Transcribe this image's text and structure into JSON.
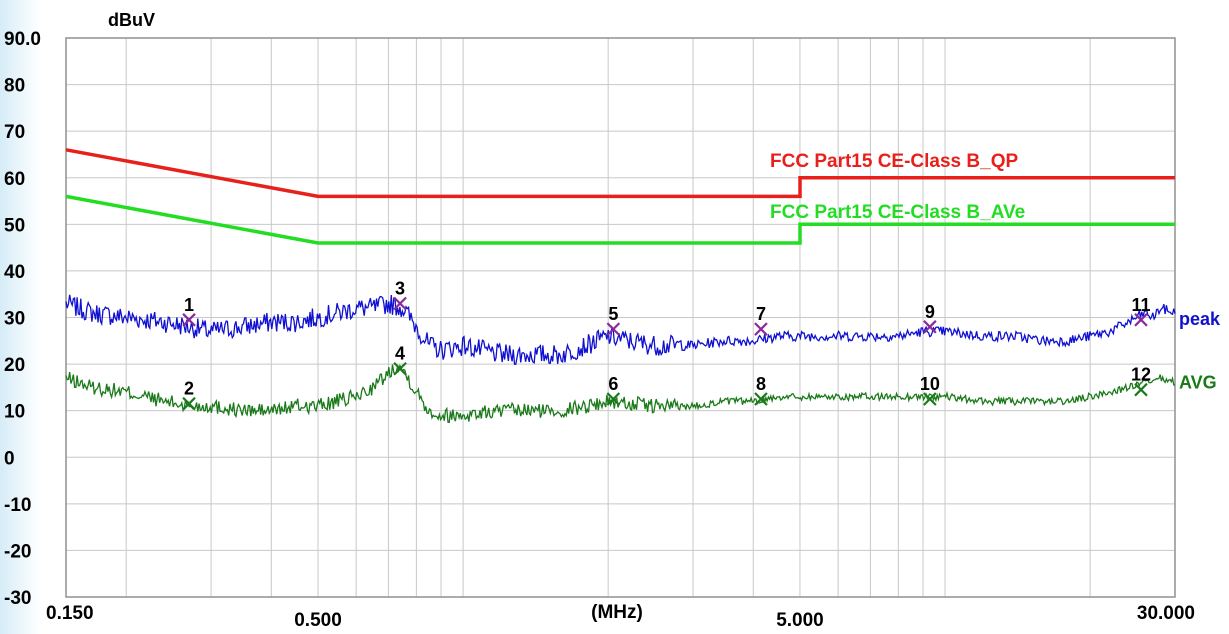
{
  "chart_data": {
    "type": "line",
    "title": "",
    "ylabel": "dBuV",
    "xlabel": "(MHz)",
    "x_scale": "log",
    "xlim": [
      0.15,
      30
    ],
    "ylim": [
      -30,
      90
    ],
    "grid": true,
    "background": "#ffffff",
    "y_ticks": [
      "90.0",
      "80",
      "70",
      "60",
      "50",
      "40",
      "30",
      "20",
      "10",
      "0",
      "-10",
      "-20",
      "-30"
    ],
    "y_tick_values": [
      90,
      80,
      70,
      60,
      50,
      40,
      30,
      20,
      10,
      0,
      -10,
      -20,
      -30
    ],
    "x_ticks": [
      "0.150",
      "0.500",
      "5.000",
      "30.000"
    ],
    "x_tick_values": [
      0.15,
      0.5,
      5,
      30
    ],
    "limits": [
      {
        "name": "FCC Part15 CE-Class B_QP",
        "color": "#e8201c",
        "points": [
          [
            0.15,
            66
          ],
          [
            0.5,
            56
          ],
          [
            5,
            56
          ],
          [
            5,
            60
          ],
          [
            30,
            60
          ]
        ]
      },
      {
        "name": "FCC Part15 CE-Class B_AVe",
        "color": "#22dd22",
        "points": [
          [
            0.15,
            56
          ],
          [
            0.5,
            46
          ],
          [
            5,
            46
          ],
          [
            5,
            50
          ],
          [
            30,
            50
          ]
        ]
      }
    ],
    "series": [
      {
        "name": "peak",
        "color": "#1010d0",
        "x": [
          0.15,
          0.17,
          0.2,
          0.24,
          0.27,
          0.3,
          0.35,
          0.4,
          0.45,
          0.5,
          0.55,
          0.6,
          0.65,
          0.7,
          0.75,
          0.8,
          0.85,
          0.9,
          1.0,
          1.2,
          1.4,
          1.6,
          1.8,
          2.0,
          2.2,
          2.5,
          3.0,
          3.5,
          4.0,
          4.5,
          5.0,
          6.0,
          7.0,
          8.0,
          9.0,
          10.0,
          12.0,
          14.0,
          16.0,
          18.0,
          20.0,
          22.0,
          24.0,
          26.0,
          27.0,
          28.0,
          30.0
        ],
        "values": [
          33,
          31,
          30,
          29,
          28,
          27,
          28,
          29,
          29,
          30,
          31,
          32,
          32,
          33,
          32,
          28,
          24,
          23,
          24,
          22,
          22,
          22,
          24,
          26,
          25,
          24,
          24,
          25,
          25,
          26,
          26,
          26,
          26,
          26,
          27,
          27,
          26,
          26,
          25,
          25,
          26,
          27,
          29,
          31,
          30,
          32,
          31
        ]
      },
      {
        "name": "AVG",
        "color": "#1a7a1a",
        "x": [
          0.15,
          0.17,
          0.2,
          0.24,
          0.27,
          0.3,
          0.35,
          0.4,
          0.45,
          0.5,
          0.55,
          0.6,
          0.65,
          0.7,
          0.73,
          0.76,
          0.8,
          0.85,
          0.9,
          1.0,
          1.2,
          1.4,
          1.6,
          1.8,
          2.0,
          2.5,
          3.0,
          3.5,
          4.0,
          4.5,
          5.0,
          6.0,
          7.0,
          8.0,
          9.0,
          10.0,
          12.0,
          14.0,
          16.0,
          18.0,
          20.0,
          22.0,
          24.0,
          26.0,
          27.0,
          28.0,
          30.0
        ],
        "values": [
          17,
          15,
          14,
          12,
          11,
          11,
          10,
          10,
          11,
          11,
          12,
          13,
          15,
          18,
          20,
          18,
          14,
          10,
          9,
          9,
          10,
          10,
          10,
          11,
          12,
          11,
          11,
          12,
          12,
          13,
          13,
          13,
          13,
          13,
          13,
          13,
          12,
          12,
          12,
          12,
          13,
          14,
          15,
          16,
          16,
          17,
          16
        ]
      }
    ],
    "markers": [
      {
        "label": "1",
        "x": 0.27,
        "y": 29.5,
        "series": "peak"
      },
      {
        "label": "2",
        "x": 0.27,
        "y": 11.5,
        "series": "AVG"
      },
      {
        "label": "3",
        "x": 0.74,
        "y": 33,
        "series": "peak"
      },
      {
        "label": "4",
        "x": 0.74,
        "y": 19,
        "series": "AVG"
      },
      {
        "label": "5",
        "x": 2.05,
        "y": 27.5,
        "series": "peak"
      },
      {
        "label": "6",
        "x": 2.05,
        "y": 12.5,
        "series": "AVG"
      },
      {
        "label": "7",
        "x": 4.15,
        "y": 27.5,
        "series": "peak"
      },
      {
        "label": "8",
        "x": 4.15,
        "y": 12.5,
        "series": "AVG"
      },
      {
        "label": "9",
        "x": 9.3,
        "y": 28,
        "series": "peak"
      },
      {
        "label": "10",
        "x": 9.3,
        "y": 12.5,
        "series": "AVG"
      },
      {
        "label": "11",
        "x": 25.5,
        "y": 29.5,
        "series": "peak"
      },
      {
        "label": "12",
        "x": 25.5,
        "y": 14.5,
        "series": "AVG"
      }
    ],
    "marker_color_peak": "#8a2a9a",
    "marker_color_avg": "#1a7a1a",
    "series_labels": [
      "peak",
      "AVG"
    ]
  }
}
